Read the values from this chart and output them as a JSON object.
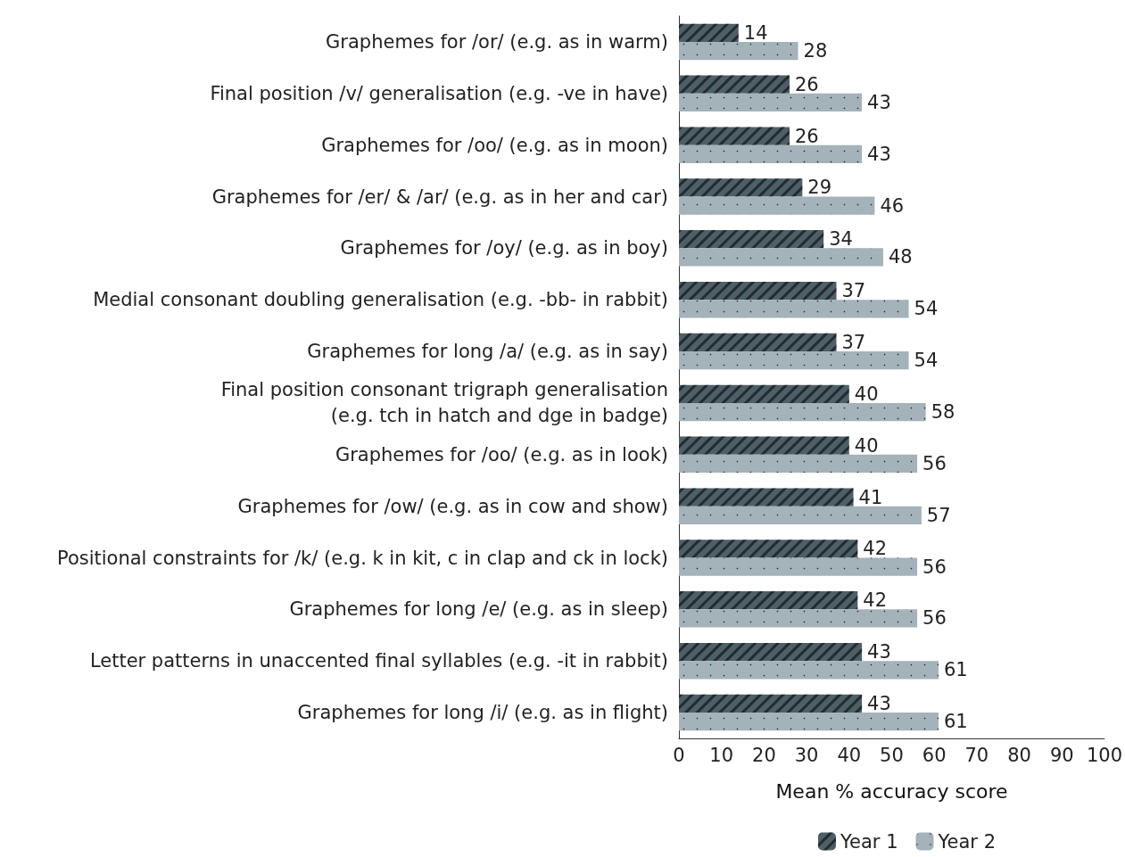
{
  "chart_data": {
    "type": "bar",
    "orientation": "horizontal",
    "categories": [
      "Graphemes for /or/ (e.g. as in warm)",
      "Final position /v/ generalisation (e.g. -ve in have)",
      "Graphemes for /oo/ (e.g. as in moon)",
      "Graphemes for /er/ & /ar/ (e.g. as in her and car)",
      "Graphemes for /oy/ (e.g. as in boy)",
      "Medial consonant doubling generalisation (e.g. -bb- in rabbit)",
      "Graphemes for long /a/ (e.g. as in say)",
      "Final position consonant trigraph generalisation\n(e.g. tch in hatch and dge in badge)",
      "Graphemes for /oo/ (e.g. as in look)",
      "Graphemes for /ow/ (e.g. as in cow and show)",
      "Positional constraints for /k/ (e.g. k in kit, c in clap and ck in lock)",
      "Graphemes for long /e/ (e.g. as in sleep)",
      "Letter patterns in unaccented final syllables (e.g. -it in rabbit)",
      "Graphemes for long /i/ (e.g. as in flight)"
    ],
    "series": [
      {
        "name": "Year 1",
        "color": "#4d5f67",
        "values": [
          14,
          26,
          26,
          29,
          34,
          37,
          37,
          40,
          40,
          41,
          42,
          42,
          43,
          43
        ]
      },
      {
        "name": "Year 2",
        "color": "#a4b2ba",
        "values": [
          28,
          43,
          43,
          46,
          48,
          54,
          54,
          58,
          56,
          57,
          56,
          56,
          61,
          61
        ]
      }
    ],
    "xlabel": "Mean % accuracy score",
    "xlim": [
      0,
      100
    ],
    "xticks": [
      0,
      10,
      20,
      30,
      40,
      50,
      60,
      70,
      80,
      90,
      100
    ],
    "data_labels": true,
    "grid": false,
    "legend": "bottom right"
  }
}
